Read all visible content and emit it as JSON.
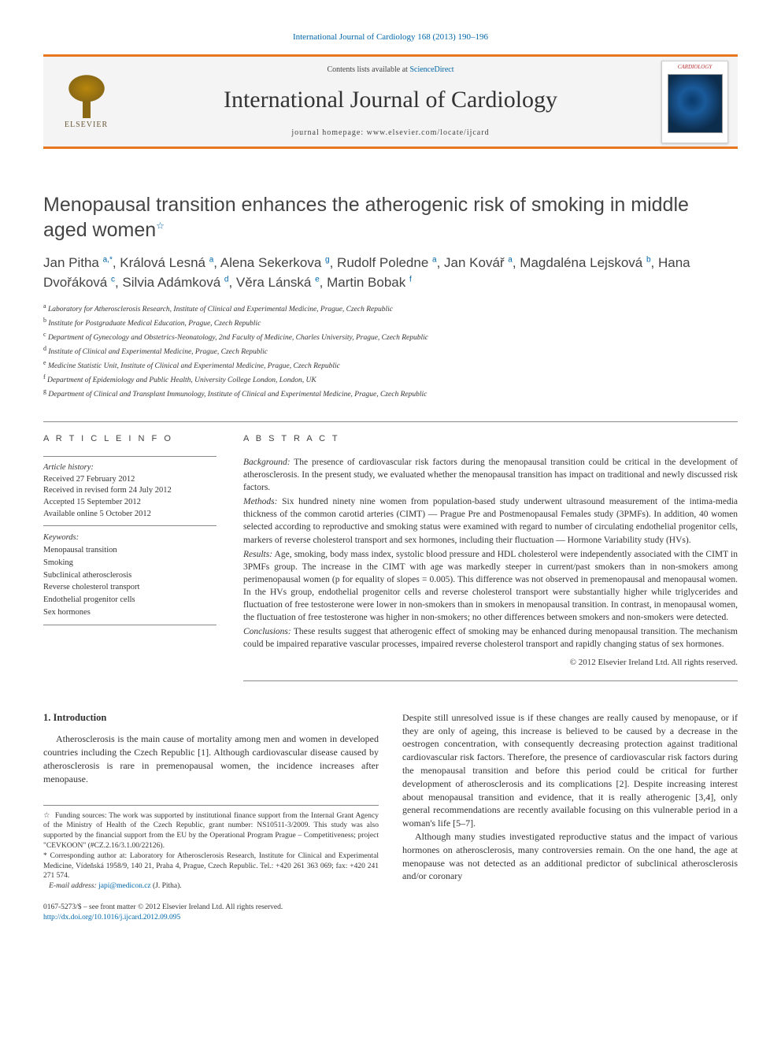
{
  "header": {
    "top_link": "International Journal of Cardiology 168 (2013) 190–196",
    "contents_prefix": "Contents lists available at ",
    "contents_link": "ScienceDirect",
    "journal_name": "International Journal of Cardiology",
    "homepage_prefix": "journal homepage: ",
    "homepage_url": "www.elsevier.com/locate/ijcard",
    "publisher": "ELSEVIER",
    "cover_title": "CARDIOLOGY"
  },
  "article": {
    "title_line1": "Menopausal transition enhances the atherogenic risk of smoking in middle",
    "title_line2": "aged women",
    "star": "☆",
    "authors_html": "Jan Pitha <sup>a,*</sup>, Králová Lesná <sup>a</sup>, Alena Sekerkova <sup>g</sup>, Rudolf Poledne <sup>a</sup>, Jan Kovář <sup>a</sup>, Magdaléna Lejsková <sup>b</sup>, Hana Dvořáková <sup>c</sup>, Silvia Adámková <sup>d</sup>, Věra Lánská <sup>e</sup>, Martin Bobak <sup>f</sup>"
  },
  "affiliations": [
    {
      "sup": "a",
      "text": "Laboratory for Atherosclerosis Research, Institute of Clinical and Experimental Medicine, Prague, Czech Republic"
    },
    {
      "sup": "b",
      "text": "Institute for Postgraduate Medical Education, Prague, Czech Republic"
    },
    {
      "sup": "c",
      "text": "Department of Gynecology and Obstetrics-Neonatology, 2nd Faculty of Medicine, Charles University, Prague, Czech Republic"
    },
    {
      "sup": "d",
      "text": "Institute of Clinical and Experimental Medicine, Prague, Czech Republic"
    },
    {
      "sup": "e",
      "text": "Medicine Statistic Unit, Institute of Clinical and Experimental Medicine, Prague, Czech Republic"
    },
    {
      "sup": "f",
      "text": "Department of Epidemiology and Public Health, University College London, London, UK"
    },
    {
      "sup": "g",
      "text": "Department of Clinical and Transplant Immunology, Institute of Clinical and Experimental Medicine, Prague, Czech Republic"
    }
  ],
  "article_info": {
    "title": "A R T I C L E   I N F O",
    "history_label": "Article history:",
    "received": "Received 27 February 2012",
    "revised": "Received in revised form 24 July 2012",
    "accepted": "Accepted 15 September 2012",
    "online": "Available online 5 October 2012",
    "keywords_label": "Keywords:",
    "keywords": [
      "Menopausal transition",
      "Smoking",
      "Subclinical atherosclerosis",
      "Reverse cholesterol transport",
      "Endothelial progenitor cells",
      "Sex hormones"
    ]
  },
  "abstract": {
    "title": "A B S T R A C T",
    "background_lbl": "Background:",
    "background": "The presence of cardiovascular risk factors during the menopausal transition could be critical in the development of atherosclerosis. In the present study, we evaluated whether the menopausal transition has impact on traditional and newly discussed risk factors.",
    "methods_lbl": "Methods:",
    "methods": "Six hundred ninety nine women from population-based study underwent ultrasound measurement of the intima-media thickness of the common carotid arteries (CIMT) — Prague Pre and Postmenopausal Females study (3PMFs). In addition, 40 women selected according to reproductive and smoking status were examined with regard to number of circulating endothelial progenitor cells, markers of reverse cholesterol transport and sex hormones, including their fluctuation — Hormone Variability study (HVs).",
    "results_lbl": "Results:",
    "results": "Age, smoking, body mass index, systolic blood pressure and HDL cholesterol were independently associated with the CIMT in 3PMFs group. The increase in the CIMT with age was markedly steeper in current/past smokers than in non-smokers among perimenopausal women (p for equality of slopes = 0.005). This difference was not observed in premenopausal and menopausal women. In the HVs group, endothelial progenitor cells and reverse cholesterol transport were substantially higher while triglycerides and fluctuation of free testosterone were lower in non-smokers than in smokers in menopausal transition. In contrast, in menopausal women, the fluctuation of free testosterone was higher in non-smokers; no other differences between smokers and non-smokers were detected.",
    "conclusions_lbl": "Conclusions:",
    "conclusions": "These results suggest that atherogenic effect of smoking may be enhanced during menopausal transition. The mechanism could be impaired reparative vascular processes, impaired reverse cholesterol transport and rapidly changing status of sex hormones.",
    "copyright": "© 2012 Elsevier Ireland Ltd. All rights reserved."
  },
  "body": {
    "intro_heading": "1. Introduction",
    "intro_p1": "Atherosclerosis is the main cause of mortality among men and women in developed countries including the Czech Republic [1]. Although cardiovascular disease caused by atherosclerosis is rare in premenopausal women, the incidence increases after menopause.",
    "intro_p2": "Despite still unresolved issue is if these changes are really caused by menopause, or if they are only of ageing, this increase is believed to be caused by a decrease in the oestrogen concentration, with consequently decreasing protection against traditional cardiovascular risk factors. Therefore, the presence of cardiovascular risk factors during the menopausal transition and before this period could be critical for further development of atherosclerosis and its complications [2]. Despite increasing interest about menopausal transition and evidence, that it is really atherogenic [3,4], only general recommendations are recently available focusing on this vulnerable period in a woman's life [5–7].",
    "intro_p3": "Although many studies investigated reproductive status and the impact of various hormones on atherosclerosis, many controversies remain. On the one hand, the age at menopause was not detected as an additional predictor of subclinical atherosclerosis and/or coronary"
  },
  "footnotes": {
    "funding_star": "☆",
    "funding": "Funding sources: The work was supported by institutional finance support from the Internal Grant Agency of the Ministry of Health of the Czech Republic, grant number: NS10511-3/2009. This study was also supported by the financial support from the EU by the Operational Program Prague – Competitiveness; project \"CEVKOON\" (#CZ.2.16/3.1.00/22126).",
    "corr_star": "*",
    "corr": "Corresponding author at: Laboratory for Atherosclerosis Research, Institute for Clinical and Experimental Medicine, Vídeňská 1958/9, 140 21, Praha 4, Prague, Czech Republic. Tel.: +420 261 363 069; fax: +420 241 271 574.",
    "email_lbl": "E-mail address:",
    "email": "japi@medicon.cz",
    "email_name": "(J. Pitha)."
  },
  "footer": {
    "issn": "0167-5273/$ – see front matter © 2012 Elsevier Ireland Ltd. All rights reserved.",
    "doi": "http://dx.doi.org/10.1016/j.ijcard.2012.09.095"
  },
  "colors": {
    "accent": "#e87722",
    "link": "#0066aa",
    "text": "#333333",
    "header_bg": "#f4f4f4"
  }
}
